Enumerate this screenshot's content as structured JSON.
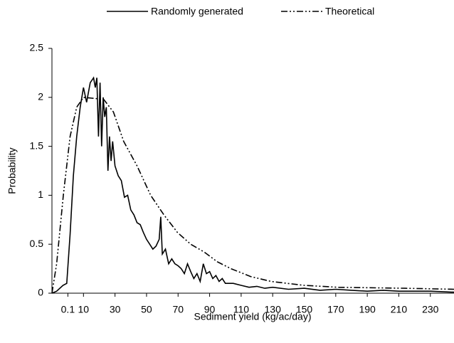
{
  "chart_data": {
    "type": "line",
    "x_label": "Sediment yield (kg/ac/day)",
    "y_label": "Probability",
    "xlim": [
      -10,
      245
    ],
    "ylim": [
      0,
      2.5
    ],
    "xticks": [
      0.1,
      10,
      30,
      50,
      70,
      90,
      110,
      130,
      150,
      170,
      190,
      210,
      230
    ],
    "yticks": [
      0,
      0.5,
      1,
      1.5,
      2,
      2.5
    ],
    "grid": false,
    "legend": "top",
    "series": [
      {
        "name": "Randomly generated",
        "color": "#000000",
        "style": "solid",
        "x": [
          -10,
          -7,
          -3,
          -0.6,
          1.5,
          3.6,
          5.7,
          7.9,
          10,
          12,
          14.3,
          16.4,
          17.5,
          18.5,
          19.5,
          20.5,
          21.5,
          22.5,
          23.5,
          24.5,
          25.5,
          26.5,
          27.5,
          28.5,
          30,
          32,
          34,
          36,
          38,
          40,
          42,
          44,
          46,
          48,
          50,
          52,
          54,
          56,
          58,
          59,
          60,
          62,
          64,
          66,
          68,
          70,
          72,
          74,
          76,
          78,
          80,
          82,
          84,
          86,
          88,
          90,
          92,
          94,
          96,
          98,
          100,
          105,
          110,
          115,
          120,
          125,
          130,
          140,
          150,
          160,
          170,
          180,
          190,
          200,
          210,
          220,
          230,
          245
        ],
        "values": [
          0,
          0.02,
          0.08,
          0.1,
          0.6,
          1.2,
          1.6,
          1.9,
          2.1,
          1.95,
          2.15,
          2.2,
          2.1,
          2.2,
          1.6,
          2.15,
          1.5,
          2.0,
          1.8,
          1.9,
          1.25,
          1.6,
          1.35,
          1.55,
          1.3,
          1.2,
          1.15,
          0.98,
          1.0,
          0.85,
          0.8,
          0.72,
          0.7,
          0.62,
          0.55,
          0.5,
          0.45,
          0.48,
          0.55,
          0.78,
          0.4,
          0.45,
          0.3,
          0.35,
          0.3,
          0.28,
          0.25,
          0.2,
          0.3,
          0.22,
          0.15,
          0.2,
          0.12,
          0.3,
          0.2,
          0.22,
          0.15,
          0.18,
          0.12,
          0.15,
          0.1,
          0.1,
          0.08,
          0.06,
          0.07,
          0.05,
          0.06,
          0.04,
          0.05,
          0.03,
          0.04,
          0.03,
          0.02,
          0.03,
          0.02,
          0.02,
          0.02,
          0.01
        ]
      },
      {
        "name": "Theoretical",
        "color": "#000000",
        "style": "dashdot",
        "x": [
          -10,
          -7,
          -2.8,
          1.5,
          5.7,
          10,
          22.8,
          29,
          35.5,
          44,
          52.6,
          61,
          69.6,
          78,
          86.6,
          95,
          103.6,
          116,
          129,
          150,
          171.7,
          214,
          245
        ],
        "values": [
          0,
          0.3,
          1.0,
          1.6,
          1.9,
          2.0,
          1.98,
          1.85,
          1.55,
          1.3,
          1.0,
          0.8,
          0.62,
          0.5,
          0.42,
          0.32,
          0.25,
          0.17,
          0.12,
          0.08,
          0.06,
          0.05,
          0.04
        ]
      }
    ]
  }
}
